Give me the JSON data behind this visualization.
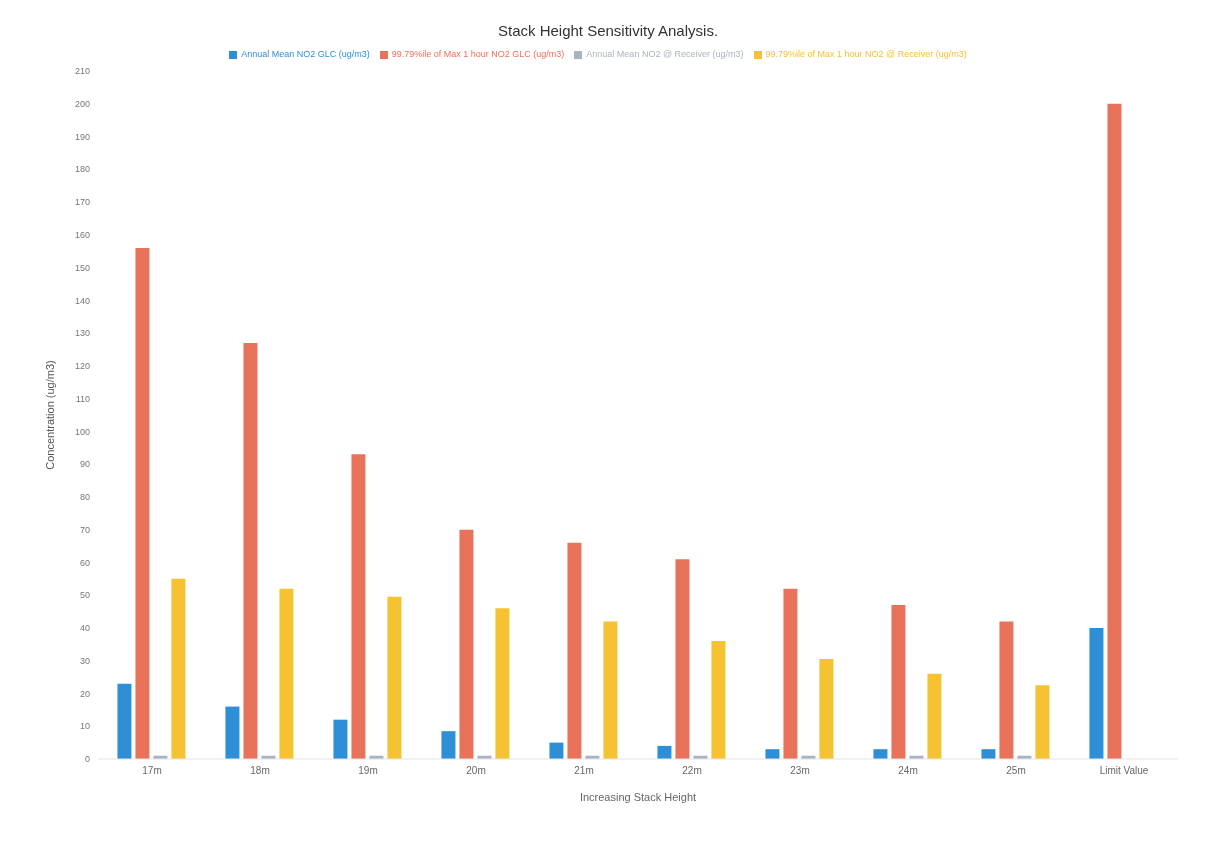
{
  "chart_data": {
    "type": "bar",
    "title": "Stack Height Sensitivity Analysis.",
    "xlabel": "Increasing Stack Height",
    "ylabel": "Concentration (ug/m3)",
    "categories": [
      "17m",
      "18m",
      "19m",
      "20m",
      "21m",
      "22m",
      "23m",
      "24m",
      "25m",
      "Limit Value"
    ],
    "series": [
      {
        "name": "Annual Mean NO2 GLC (ug/m3)",
        "color": "#2e8fd6",
        "values": [
          23,
          16,
          12,
          8.5,
          5,
          4,
          3,
          3,
          3,
          40
        ]
      },
      {
        "name": "99.79%ile of Max 1 hour NO2 GLC (ug/m3)",
        "color": "#e8735a",
        "values": [
          156,
          127,
          93,
          70,
          66,
          61,
          52,
          47,
          42,
          200
        ]
      },
      {
        "name": "Annual Mean NO2 @ Receiver (ug/m3)",
        "color": "#a9b4c2",
        "values": [
          1,
          1,
          1,
          1,
          1,
          1,
          1,
          1,
          1,
          null
        ]
      },
      {
        "name": "99.79%ile of Max 1 hour NO2 @ Receiver (ug/m3)",
        "color": "#f5c232",
        "values": [
          55,
          52,
          49.5,
          46,
          42,
          36,
          30.5,
          26,
          22.5,
          null
        ]
      }
    ],
    "ylim": [
      0,
      210
    ],
    "yticks": [
      0,
      10,
      20,
      30,
      40,
      50,
      60,
      70,
      80,
      90,
      100,
      110,
      120,
      130,
      140,
      150,
      160,
      170,
      180,
      190,
      200,
      210
    ],
    "grid": false,
    "legend": "top"
  }
}
